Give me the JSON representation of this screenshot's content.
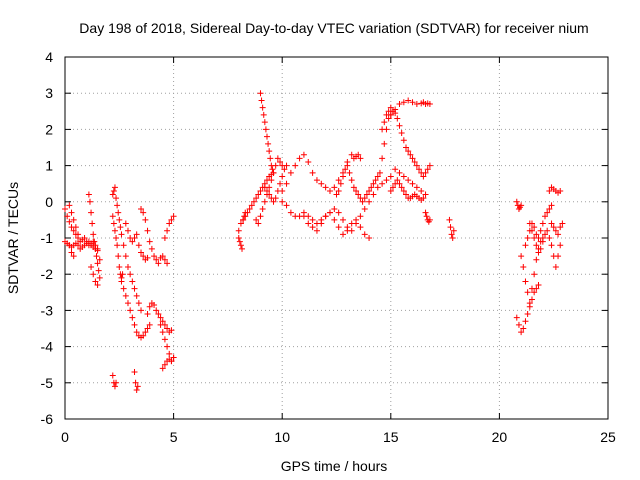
{
  "chart_data": {
    "type": "scatter",
    "title": "Day 198 of 2018, Sidereal Day-to-day VTEC variation (SDTVAR) for receiver nium",
    "xlabel": "GPS time / hours",
    "ylabel": "SDTVAR / TECUs",
    "xlim": [
      0,
      25
    ],
    "ylim": [
      -6,
      4
    ],
    "xticks": [
      0,
      5,
      10,
      15,
      20,
      25
    ],
    "yticks": [
      -6,
      -5,
      -4,
      -3,
      -2,
      -1,
      0,
      1,
      2,
      3,
      4
    ],
    "grid": true,
    "marker": "plus",
    "color": "#ff0000",
    "series": [
      {
        "name": "SDTVAR",
        "x": [
          0.0,
          0.1,
          0.2,
          0.3,
          0.4,
          0.5,
          0.6,
          0.7,
          0.8,
          0.9,
          1.0,
          1.1,
          1.2,
          1.3,
          1.4,
          1.5,
          0.0,
          0.1,
          0.2,
          0.3,
          0.4,
          0.5,
          0.6,
          0.7,
          0.8,
          0.9,
          1.0,
          1.1,
          1.2,
          1.3,
          1.4,
          1.5,
          1.1,
          1.15,
          1.2,
          1.25,
          1.3,
          1.35,
          1.4,
          1.45,
          1.5,
          1.55,
          1.6,
          1.2,
          1.3,
          1.4,
          1.5,
          1.6,
          0.2,
          0.3,
          0.4,
          0.5,
          0.6,
          0.2,
          0.3,
          0.4,
          2.2,
          2.25,
          2.3,
          2.35,
          2.4,
          2.45,
          2.5,
          2.55,
          2.6,
          2.65,
          2.2,
          2.25,
          2.3,
          2.35,
          2.4,
          2.45,
          2.5,
          2.55,
          2.6,
          2.7,
          2.8,
          2.9,
          3.0,
          3.1,
          3.2,
          3.3,
          3.4,
          3.5,
          2.6,
          2.7,
          2.8,
          2.9,
          3.0,
          3.1,
          3.2,
          3.3,
          3.4,
          3.5,
          3.6,
          3.7,
          3.8,
          3.9,
          2.8,
          2.9,
          3.0,
          3.1,
          3.2,
          3.3,
          3.4,
          3.5,
          3.6,
          3.7,
          3.8,
          3.5,
          3.6,
          3.7,
          3.8,
          3.9,
          4.0,
          4.1,
          4.2,
          4.3,
          4.4,
          4.5,
          4.6,
          4.7,
          3.8,
          3.9,
          4.0,
          4.1,
          4.2,
          4.3,
          4.4,
          4.5,
          4.6,
          4.7,
          4.8,
          4.9,
          4.4,
          4.5,
          4.6,
          4.7,
          4.8,
          4.9,
          5.0,
          4.5,
          4.6,
          4.7,
          4.8,
          4.9,
          5.0,
          4.6,
          4.7,
          4.8,
          4.9,
          5.0,
          2.2,
          2.25,
          2.3,
          2.35,
          3.2,
          3.25,
          3.3,
          3.35,
          8.0,
          8.1,
          8.2,
          8.3,
          8.4,
          8.5,
          8.6,
          8.7,
          8.8,
          8.9,
          9.0,
          9.1,
          9.2,
          9.3,
          9.4,
          9.5,
          8.0,
          8.05,
          8.1,
          8.15,
          8.2,
          8.25,
          8.3,
          8.8,
          8.9,
          9.0,
          9.1,
          9.2,
          9.3,
          9.4,
          9.5,
          9.6,
          9.7,
          9.8,
          9.9,
          10.0,
          9.0,
          9.05,
          9.1,
          9.15,
          9.2,
          9.25,
          9.3,
          9.35,
          9.4,
          9.45,
          9.5,
          9.55,
          9.6,
          9.2,
          9.3,
          9.4,
          9.5,
          9.6,
          9.7,
          9.8,
          9.9,
          10.0,
          10.1,
          10.2,
          10.0,
          10.2,
          10.4,
          10.6,
          10.8,
          11.0,
          11.2,
          11.4,
          11.6,
          11.8,
          12.0,
          12.2,
          12.4,
          12.6,
          12.8,
          13.0,
          10.0,
          10.2,
          10.4,
          10.6,
          10.8,
          11.0,
          11.2,
          11.4,
          11.6,
          11.8,
          12.0,
          12.2,
          12.4,
          12.6,
          12.8,
          13.0,
          13.2,
          13.4,
          13.6,
          13.8,
          14.0,
          14.2,
          14.4,
          14.6,
          14.8,
          15.0,
          11.0,
          11.2,
          11.4,
          11.6,
          11.8,
          12.0,
          12.2,
          12.4,
          12.6,
          12.8,
          13.0,
          13.2,
          13.4,
          13.6,
          13.8,
          14.0,
          12.5,
          12.6,
          12.7,
          12.8,
          12.9,
          13.0,
          13.1,
          13.2,
          13.3,
          13.4,
          13.5,
          13.6,
          13.7,
          13.8,
          13.9,
          14.0,
          14.1,
          14.2,
          14.3,
          14.4,
          14.5,
          14.6,
          14.7,
          14.8,
          14.9,
          15.0,
          15.1,
          15.2,
          15.3,
          15.4,
          15.5,
          15.6,
          15.7,
          15.8,
          15.9,
          16.0,
          16.1,
          16.2,
          16.3,
          16.4,
          16.5,
          16.6,
          16.7,
          16.8,
          15.0,
          15.1,
          15.2,
          15.3,
          15.4,
          15.5,
          15.6,
          15.7,
          15.8,
          15.9,
          16.0,
          16.1,
          16.2,
          16.3,
          16.4,
          16.5,
          15.0,
          15.2,
          15.4,
          15.6,
          15.8,
          16.0,
          16.2,
          16.4,
          16.5,
          16.6,
          16.7,
          16.8,
          15.2,
          15.4,
          15.6,
          15.8,
          16.0,
          16.2,
          16.4,
          16.6,
          14.6,
          14.7,
          14.8,
          14.9,
          15.0,
          15.1,
          16.6,
          16.65,
          16.7,
          16.75,
          16.8,
          17.7,
          17.75,
          17.8,
          17.85,
          17.9,
          13.2,
          13.3,
          13.4,
          13.5,
          13.6,
          20.8,
          20.85,
          20.9,
          20.95,
          21.0,
          20.8,
          20.9,
          21.0,
          21.1,
          21.2,
          21.3,
          21.4,
          21.5,
          21.6,
          21.7,
          21.8,
          21.0,
          21.1,
          21.2,
          21.3,
          21.4,
          21.5,
          21.6,
          21.7,
          21.8,
          21.9,
          22.0,
          21.2,
          21.3,
          21.4,
          21.5,
          21.6,
          21.7,
          21.8,
          21.9,
          22.0,
          22.1,
          22.2,
          22.3,
          22.4,
          21.4,
          21.5,
          21.6,
          21.7,
          21.8,
          21.9,
          22.0,
          22.1,
          22.2,
          22.3,
          22.4,
          22.5,
          22.6,
          22.7,
          22.8,
          22.3,
          22.4,
          22.5,
          22.6,
          22.7,
          22.8,
          22.4,
          22.5,
          22.6,
          22.7,
          22.8,
          22.9
        ],
        "y": [
          -0.2,
          -0.4,
          -0.55,
          -0.7,
          -0.8,
          -0.9,
          -1.0,
          -1.1,
          -1.05,
          -1.0,
          -1.1,
          -1.2,
          -1.15,
          -1.1,
          -1.2,
          -1.3,
          -1.1,
          -1.15,
          -1.2,
          -1.25,
          -1.2,
          -1.15,
          -1.2,
          -1.3,
          -1.25,
          -1.2,
          -1.15,
          -1.1,
          -1.2,
          -1.25,
          -1.3,
          -1.35,
          0.2,
          0.0,
          -0.3,
          -0.6,
          -0.9,
          -1.1,
          -1.3,
          -1.5,
          -1.7,
          -1.9,
          -2.1,
          -1.8,
          -2.0,
          -2.2,
          -2.3,
          -1.6,
          -0.1,
          -0.3,
          -0.5,
          -0.7,
          -0.9,
          -1.2,
          -1.4,
          -1.5,
          -0.4,
          -0.6,
          -0.8,
          -1.0,
          -1.2,
          -1.5,
          -1.8,
          -2.0,
          -2.1,
          -2.0,
          0.2,
          0.3,
          0.4,
          0.1,
          -0.1,
          -0.3,
          -0.5,
          -0.7,
          -0.9,
          -1.2,
          -1.5,
          -1.8,
          -2.0,
          -2.2,
          -2.4,
          -2.6,
          -2.8,
          -3.0,
          -2.2,
          -2.4,
          -2.6,
          -2.8,
          -3.0,
          -3.2,
          -3.4,
          -3.6,
          -3.7,
          -3.75,
          -3.7,
          -3.6,
          -3.5,
          -3.4,
          -0.6,
          -0.8,
          -1.0,
          -1.1,
          -1.0,
          -0.9,
          -1.2,
          -1.4,
          -1.5,
          -1.6,
          -1.55,
          -0.2,
          -0.3,
          -0.5,
          -0.8,
          -1.1,
          -1.3,
          -1.5,
          -1.6,
          -1.7,
          -1.55,
          -1.5,
          -1.6,
          -1.7,
          -3.1,
          -2.9,
          -2.8,
          -2.85,
          -3.0,
          -3.1,
          -3.2,
          -3.3,
          -3.4,
          -3.5,
          -3.6,
          -3.55,
          -3.4,
          -3.6,
          -3.8,
          -4.0,
          -4.2,
          -4.4,
          -4.3,
          -4.6,
          -4.5,
          -4.4,
          -4.35,
          -4.4,
          -4.3,
          -1.0,
          -0.8,
          -0.6,
          -0.5,
          -0.4,
          -4.8,
          -5.0,
          -5.1,
          -5.0,
          -4.7,
          -5.0,
          -5.2,
          -5.1,
          -0.8,
          -0.6,
          -0.5,
          -0.4,
          -0.3,
          -0.2,
          -0.1,
          0.0,
          0.1,
          0.2,
          0.3,
          0.4,
          0.5,
          0.6,
          0.7,
          0.75,
          -1.0,
          -1.1,
          -1.2,
          -1.3,
          -0.5,
          -0.4,
          -0.3,
          -0.5,
          -0.6,
          -0.4,
          -0.2,
          0.0,
          0.2,
          0.4,
          0.6,
          0.8,
          1.0,
          1.2,
          1.1,
          1.0,
          3.0,
          2.8,
          2.6,
          2.4,
          2.2,
          2.0,
          1.8,
          1.6,
          1.4,
          1.2,
          1.0,
          0.9,
          0.8,
          0.4,
          0.3,
          0.2,
          0.1,
          0.0,
          0.1,
          0.3,
          0.5,
          0.7,
          0.9,
          1.0,
          0.3,
          0.5,
          0.8,
          1.0,
          1.2,
          1.3,
          1.1,
          0.8,
          0.6,
          0.5,
          0.4,
          0.3,
          0.4,
          0.6,
          0.8,
          1.1,
          0.0,
          -0.1,
          -0.3,
          -0.4,
          -0.4,
          -0.3,
          -0.4,
          -0.5,
          -0.6,
          -0.5,
          -0.4,
          -0.3,
          -0.2,
          -0.3,
          -0.5,
          -0.7,
          -0.8,
          -0.6,
          -0.4,
          -0.2,
          0.0,
          0.2,
          0.4,
          0.5,
          0.6,
          0.7,
          -0.4,
          -0.6,
          -0.7,
          -0.8,
          -0.6,
          -0.4,
          -0.3,
          -0.5,
          -0.7,
          -0.9,
          -0.8,
          -0.6,
          -0.5,
          -0.7,
          -0.9,
          -1.0,
          0.2,
          0.3,
          0.5,
          0.7,
          0.9,
          1.0,
          0.8,
          0.6,
          0.4,
          0.3,
          0.2,
          0.1,
          0.0,
          0.1,
          0.2,
          0.3,
          0.4,
          0.5,
          0.6,
          0.7,
          0.8,
          1.2,
          1.6,
          2.0,
          2.3,
          2.4,
          2.5,
          2.45,
          2.3,
          2.1,
          1.9,
          1.7,
          1.5,
          1.4,
          1.3,
          1.2,
          1.1,
          1.0,
          0.9,
          0.8,
          0.7,
          0.8,
          0.9,
          1.0,
          0.3,
          0.4,
          0.5,
          0.6,
          0.5,
          0.4,
          0.3,
          0.2,
          0.1,
          0.1,
          0.15,
          0.2,
          0.15,
          0.1,
          0.05,
          0.1,
          2.4,
          2.55,
          2.7,
          2.75,
          2.8,
          2.75,
          2.7,
          2.72,
          2.75,
          2.7,
          2.72,
          2.7,
          0.9,
          0.8,
          0.7,
          0.6,
          0.5,
          0.4,
          0.3,
          0.2,
          2.0,
          2.2,
          2.4,
          2.5,
          2.6,
          2.5,
          -0.3,
          -0.4,
          -0.5,
          -0.55,
          -0.5,
          -0.5,
          -0.7,
          -0.9,
          -1.0,
          -0.8,
          1.3,
          1.2,
          1.25,
          1.3,
          1.2,
          0.0,
          -0.1,
          -0.2,
          -0.15,
          -0.1,
          -3.2,
          -3.4,
          -3.6,
          -3.5,
          -3.3,
          -3.1,
          -2.9,
          -2.7,
          -2.5,
          -2.4,
          -2.3,
          -1.5,
          -1.8,
          -2.2,
          -2.5,
          -2.8,
          -2.4,
          -2.0,
          -1.6,
          -1.3,
          -1.1,
          -1.0,
          -1.2,
          -1.0,
          -0.8,
          -0.6,
          -0.7,
          -0.9,
          -1.0,
          -0.8,
          -0.6,
          -0.4,
          -0.3,
          -0.2,
          -0.1,
          -0.6,
          -0.8,
          -1.0,
          -1.2,
          -1.4,
          -1.3,
          -1.1,
          -0.9,
          -0.8,
          -1.0,
          -1.2,
          -1.5,
          -1.8,
          -1.5,
          -1.2,
          0.3,
          0.4,
          0.35,
          0.3,
          0.25,
          0.3,
          -0.6,
          -0.7,
          -0.8,
          -0.9,
          -0.7,
          -0.6
        ]
      }
    ]
  }
}
